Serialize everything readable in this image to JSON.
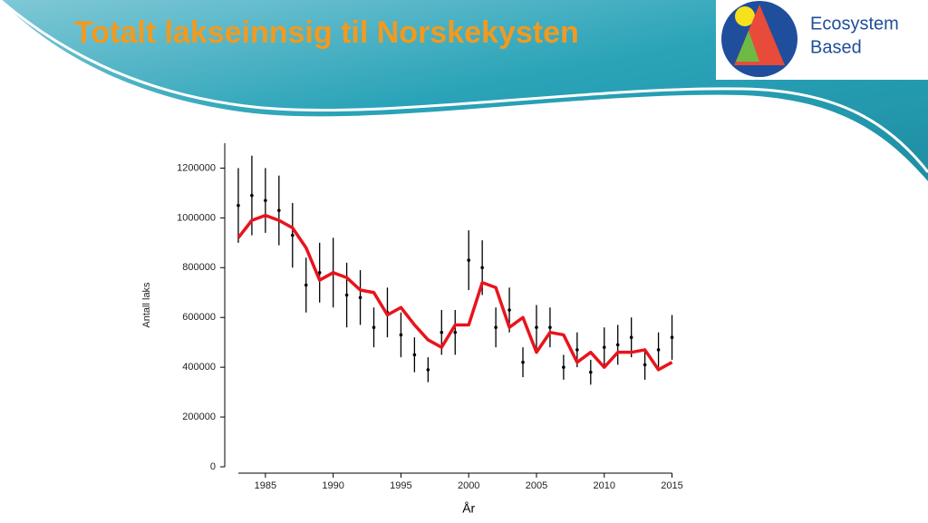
{
  "header": {
    "title": "Totalt lakseinnsig til Norskekysten",
    "logo_text": [
      "Ecosystem",
      "Based"
    ]
  },
  "chart_data": {
    "type": "line",
    "y_label": "Antall laks",
    "x_label": "År",
    "x": [
      1983,
      1984,
      1985,
      1986,
      1987,
      1988,
      1989,
      1990,
      1991,
      1992,
      1993,
      1994,
      1995,
      1996,
      1997,
      1998,
      1999,
      2000,
      2001,
      2002,
      2003,
      2004,
      2005,
      2006,
      2007,
      2008,
      2009,
      2010,
      2011,
      2012,
      2013,
      2014,
      2015
    ],
    "series": [
      {
        "color": "#000000",
        "values": [
          1050000,
          1090000,
          1070000,
          1030000,
          930000,
          730000,
          780000,
          780000,
          690000,
          680000,
          560000,
          620000,
          530000,
          450000,
          390000,
          540000,
          540000,
          830000,
          800000,
          560000,
          630000,
          420000,
          560000,
          560000,
          400000,
          470000,
          380000,
          480000,
          490000,
          520000,
          410000,
          470000,
          520000
        ],
        "errors": [
          150000,
          160000,
          130000,
          140000,
          130000,
          110000,
          120000,
          140000,
          130000,
          110000,
          80000,
          100000,
          90000,
          70000,
          50000,
          90000,
          90000,
          120000,
          110000,
          80000,
          90000,
          60000,
          90000,
          80000,
          50000,
          70000,
          50000,
          80000,
          80000,
          80000,
          60000,
          70000,
          90000
        ]
      },
      {
        "color": "#e8141c",
        "values": [
          920000,
          990000,
          1010000,
          990000,
          960000,
          880000,
          750000,
          780000,
          760000,
          710000,
          700000,
          610000,
          640000,
          570000,
          510000,
          480000,
          570000,
          570000,
          740000,
          720000,
          560000,
          600000,
          460000,
          540000,
          530000,
          420000,
          460000,
          400000,
          460000,
          460000,
          470000,
          390000,
          420000
        ]
      }
    ],
    "xlim": [
      1982,
      2015.7
    ],
    "xticks": [
      1985,
      1990,
      1995,
      2000,
      2005,
      2010,
      2015
    ],
    "ylim": [
      0,
      1300000
    ],
    "yticks": [
      0,
      200000,
      400000,
      600000,
      800000,
      1000000,
      1200000
    ]
  }
}
